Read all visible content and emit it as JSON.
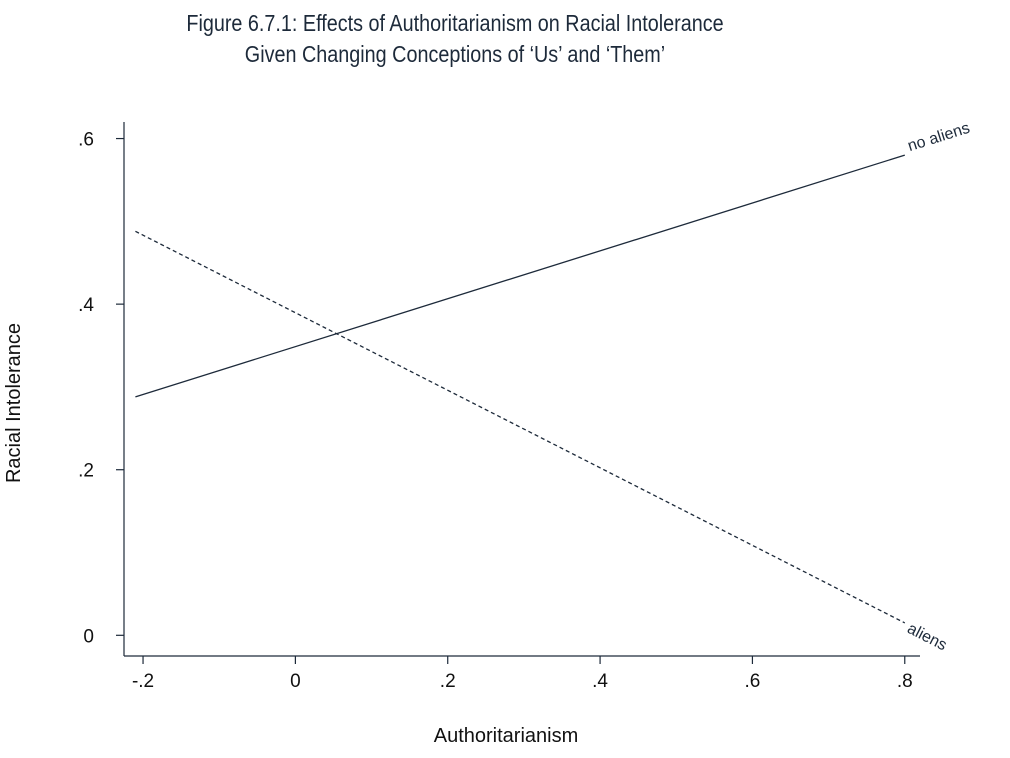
{
  "chart_data": {
    "type": "line",
    "title": "Figure 6.7.1: Effects of Authoritarianism on Racial Intolerance",
    "subtitle": "Given Changing Conceptions of ‘Us’ and ‘Them’",
    "xlabel": "Authoritarianism",
    "ylabel": "Racial Intolerance",
    "xlim": [
      -0.225,
      0.82
    ],
    "ylim": [
      -0.025,
      0.62
    ],
    "xticks": [
      -0.2,
      0,
      0.2,
      0.4,
      0.6,
      0.8
    ],
    "xtick_labels": [
      "-.2",
      "0",
      ".2",
      ".4",
      ".6",
      ".8"
    ],
    "yticks": [
      0,
      0.2,
      0.4,
      0.6
    ],
    "ytick_labels": [
      "0",
      ".2",
      ".4",
      ".6"
    ],
    "grid": false,
    "legend": "none",
    "series": [
      {
        "name": "no aliens",
        "style": "solid",
        "color": "#1d2a3a",
        "x": [
          -0.21,
          0.8
        ],
        "y": [
          0.288,
          0.58
        ]
      },
      {
        "name": "aliens",
        "style": "dashed",
        "color": "#1d2a3a",
        "x": [
          -0.21,
          0.8
        ],
        "y": [
          0.488,
          0.015
        ]
      }
    ]
  }
}
